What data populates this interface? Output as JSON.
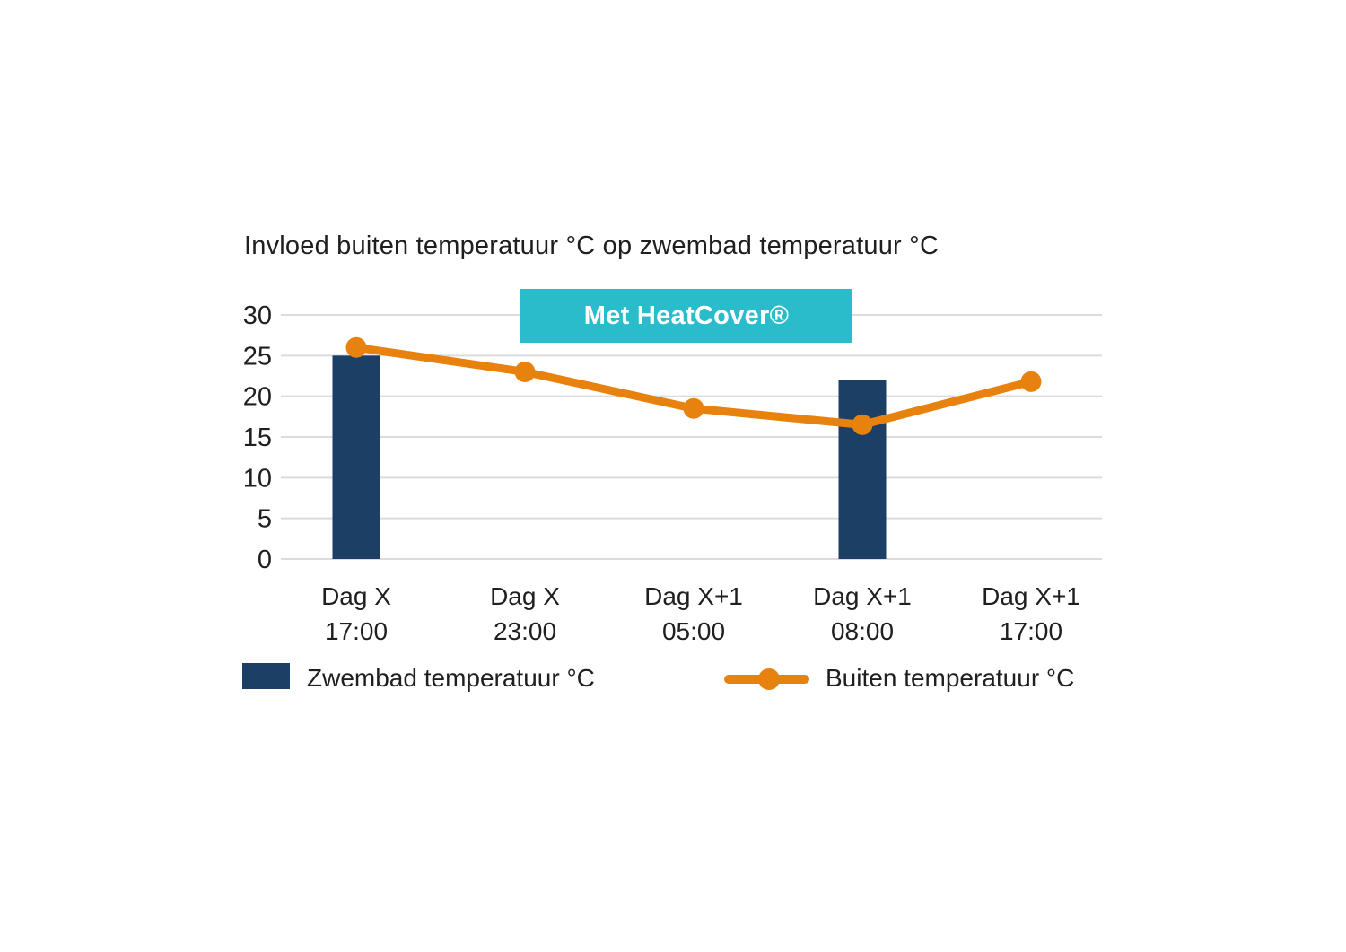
{
  "title": "Invloed buiten temperatuur °C op zwembad temperatuur °C",
  "badge": {
    "label": "Met HeatCover®",
    "bg": "#2abccb",
    "text_color": "#ffffff"
  },
  "legend": [
    {
      "label": "Zwembad temperatuur °C",
      "type": "bar",
      "color": "#1c3f66"
    },
    {
      "label": "Buiten temperatuur °C",
      "type": "line",
      "color": "#e8820e"
    }
  ],
  "chart_data": {
    "type": "bar",
    "title": "Invloed buiten temperatuur °C op zwembad temperatuur °C",
    "categories": [
      [
        "Dag X",
        "17:00"
      ],
      [
        "Dag X",
        "23:00"
      ],
      [
        "Dag X+1",
        "05:00"
      ],
      [
        "Dag X+1",
        "08:00"
      ],
      [
        "Dag X+1",
        "17:00"
      ]
    ],
    "series": [
      {
        "name": "Zwembad temperatuur °C",
        "type": "bar",
        "color": "#1c3f66",
        "values": [
          25,
          null,
          null,
          22,
          null
        ]
      },
      {
        "name": "Buiten temperatuur °C",
        "type": "line",
        "color": "#e8820e",
        "values": [
          26,
          23,
          18.5,
          16.5,
          21.8
        ]
      }
    ],
    "yticks": [
      0,
      5,
      10,
      15,
      20,
      25,
      30
    ],
    "ylim": [
      0,
      30
    ],
    "xlabel": "",
    "ylabel": "",
    "grid": true,
    "legend_position": "bottom",
    "annotation": "Met HeatCover®"
  },
  "colors": {
    "background": "#ffffff",
    "gridline": "#dcdcdc",
    "text": "#1f1f1f"
  }
}
